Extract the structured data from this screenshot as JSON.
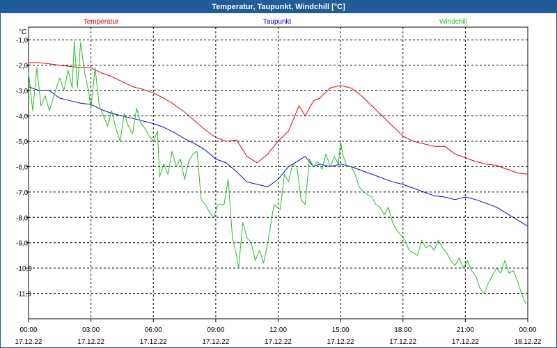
{
  "window": {
    "title": "Temperatur, Taupunkt, Windchill [°C]"
  },
  "colors": {
    "titlebar": "#1f5c99",
    "temperatur": "#e00000",
    "taupunkt": "#0000d0",
    "windchill": "#22c022"
  },
  "chart_data": {
    "type": "line",
    "title": "Temperatur, Taupunkt, Windchill [°C]",
    "ylabel": "°C",
    "xlabel": "",
    "ylim": [
      -12,
      -0.5
    ],
    "xlim": [
      0,
      24
    ],
    "grid": true,
    "legend_placement": "top",
    "yticks": [
      -1.0,
      -2.0,
      -3.0,
      -4.0,
      -5.0,
      -6.0,
      -7.0,
      -8.0,
      -9.0,
      -10.0,
      -11.0
    ],
    "ytick_labels": [
      "-1,0",
      "-2,0",
      "-3,0",
      "-4,0",
      "-5,0",
      "-6,0",
      "-7,0",
      "-8,0",
      "-9,0",
      "-10,0",
      "-11,0"
    ],
    "xticks": [
      {
        "x": 0,
        "time": "00:00",
        "date": "17.12.22"
      },
      {
        "x": 3,
        "time": "03:00",
        "date": "17.12.22"
      },
      {
        "x": 6,
        "time": "06:00",
        "date": "17.12.22"
      },
      {
        "x": 9,
        "time": "09:00",
        "date": "17.12.22"
      },
      {
        "x": 12,
        "time": "12:00",
        "date": "17.12.22"
      },
      {
        "x": 15,
        "time": "15:00",
        "date": "17.12.22"
      },
      {
        "x": 18,
        "time": "18:00",
        "date": "17.12.22"
      },
      {
        "x": 21,
        "time": "21:00",
        "date": "17.12.22"
      },
      {
        "x": 24,
        "time": "00:00",
        "date": "18.12.22"
      }
    ],
    "series": [
      {
        "name": "Temperatur",
        "color": "#e00000",
        "points": [
          [
            0,
            -1.9
          ],
          [
            0.5,
            -1.9
          ],
          [
            1,
            -1.95
          ],
          [
            1.5,
            -2.0
          ],
          [
            2,
            -2.05
          ],
          [
            2.5,
            -2.1
          ],
          [
            3,
            -2.1
          ],
          [
            3.5,
            -2.3
          ],
          [
            4,
            -2.45
          ],
          [
            4.5,
            -2.65
          ],
          [
            5,
            -2.85
          ],
          [
            5.5,
            -2.95
          ],
          [
            6,
            -3.1
          ],
          [
            6.5,
            -3.3
          ],
          [
            7,
            -3.55
          ],
          [
            7.5,
            -3.85
          ],
          [
            8,
            -4.2
          ],
          [
            8.5,
            -4.55
          ],
          [
            9,
            -4.85
          ],
          [
            9.5,
            -5.0
          ],
          [
            10,
            -4.95
          ],
          [
            10.5,
            -5.6
          ],
          [
            11,
            -5.85
          ],
          [
            11.5,
            -5.5
          ],
          [
            12,
            -5.0
          ],
          [
            12.5,
            -4.6
          ],
          [
            13,
            -3.6
          ],
          [
            13.3,
            -4.0
          ],
          [
            13.7,
            -3.4
          ],
          [
            14,
            -3.3
          ],
          [
            14.5,
            -2.9
          ],
          [
            15,
            -2.8
          ],
          [
            15.5,
            -2.9
          ],
          [
            16,
            -3.2
          ],
          [
            16.5,
            -3.6
          ],
          [
            17,
            -4.0
          ],
          [
            17.5,
            -4.4
          ],
          [
            18,
            -4.8
          ],
          [
            18.5,
            -5.0
          ],
          [
            19,
            -5.1
          ],
          [
            19.5,
            -5.2
          ],
          [
            20,
            -5.2
          ],
          [
            20.5,
            -5.5
          ],
          [
            21,
            -5.65
          ],
          [
            21.5,
            -5.8
          ],
          [
            22,
            -5.9
          ],
          [
            22.5,
            -5.95
          ],
          [
            23,
            -6.1
          ],
          [
            23.5,
            -6.25
          ],
          [
            24,
            -6.3
          ]
        ]
      },
      {
        "name": "Taupunkt",
        "color": "#0000d0",
        "points": [
          [
            0,
            -2.85
          ],
          [
            0.5,
            -3.0
          ],
          [
            1,
            -3.0
          ],
          [
            1.5,
            -3.3
          ],
          [
            2,
            -3.4
          ],
          [
            2.5,
            -3.5
          ],
          [
            3,
            -3.55
          ],
          [
            3.5,
            -3.75
          ],
          [
            4,
            -3.9
          ],
          [
            4.5,
            -4.0
          ],
          [
            5,
            -4.1
          ],
          [
            5.5,
            -4.2
          ],
          [
            6,
            -4.3
          ],
          [
            6.5,
            -4.45
          ],
          [
            7,
            -4.65
          ],
          [
            7.5,
            -4.9
          ],
          [
            8,
            -5.1
          ],
          [
            8.5,
            -5.35
          ],
          [
            9,
            -5.7
          ],
          [
            9.5,
            -5.85
          ],
          [
            10,
            -6.2
          ],
          [
            10.5,
            -6.6
          ],
          [
            11,
            -6.7
          ],
          [
            11.5,
            -6.8
          ],
          [
            12,
            -6.5
          ],
          [
            12.5,
            -6.0
          ],
          [
            13,
            -5.75
          ],
          [
            13.3,
            -5.6
          ],
          [
            13.7,
            -6.0
          ],
          [
            14,
            -5.9
          ],
          [
            14.5,
            -6.0
          ],
          [
            15,
            -5.9
          ],
          [
            15.5,
            -6.0
          ],
          [
            16,
            -6.15
          ],
          [
            16.5,
            -6.3
          ],
          [
            17,
            -6.45
          ],
          [
            17.5,
            -6.6
          ],
          [
            18,
            -6.7
          ],
          [
            18.5,
            -6.85
          ],
          [
            19,
            -7.0
          ],
          [
            19.5,
            -7.15
          ],
          [
            20,
            -7.2
          ],
          [
            20.5,
            -7.3
          ],
          [
            21,
            -7.2
          ],
          [
            21.5,
            -7.3
          ],
          [
            22,
            -7.45
          ],
          [
            22.5,
            -7.6
          ],
          [
            23,
            -7.85
          ],
          [
            23.5,
            -8.1
          ],
          [
            24,
            -8.35
          ]
        ]
      },
      {
        "name": "Windchill",
        "color": "#22c022",
        "points": [
          [
            0,
            -2.3
          ],
          [
            0.2,
            -3.8
          ],
          [
            0.4,
            -2.1
          ],
          [
            0.6,
            -3.6
          ],
          [
            0.8,
            -3.2
          ],
          [
            1,
            -3.8
          ],
          [
            1.3,
            -3.0
          ],
          [
            1.5,
            -2.5
          ],
          [
            1.7,
            -3.0
          ],
          [
            1.9,
            -2.2
          ],
          [
            2.1,
            -2.9
          ],
          [
            2.2,
            -1.05
          ],
          [
            2.35,
            -2.9
          ],
          [
            2.5,
            -1.1
          ],
          [
            2.7,
            -2.3
          ],
          [
            2.9,
            -3.1
          ],
          [
            3.0,
            -3.7
          ],
          [
            3.2,
            -2.1
          ],
          [
            3.4,
            -3.6
          ],
          [
            3.6,
            -4.0
          ],
          [
            3.8,
            -4.4
          ],
          [
            4.0,
            -3.8
          ],
          [
            4.2,
            -4.5
          ],
          [
            4.4,
            -5.0
          ],
          [
            4.6,
            -3.9
          ],
          [
            4.8,
            -4.4
          ],
          [
            5.0,
            -4.7
          ],
          [
            5.2,
            -3.7
          ],
          [
            5.4,
            -4.3
          ],
          [
            5.6,
            -4.5
          ],
          [
            5.8,
            -4.8
          ],
          [
            6.0,
            -5.0
          ],
          [
            6.2,
            -4.6
          ],
          [
            6.3,
            -6.4
          ],
          [
            6.5,
            -5.9
          ],
          [
            6.7,
            -6.3
          ],
          [
            6.9,
            -5.4
          ],
          [
            7.1,
            -6.0
          ],
          [
            7.3,
            -5.7
          ],
          [
            7.5,
            -6.5
          ],
          [
            7.7,
            -5.8
          ],
          [
            7.9,
            -5.5
          ],
          [
            8.1,
            -5.4
          ],
          [
            8.3,
            -7.3
          ],
          [
            8.5,
            -7.5
          ],
          [
            8.7,
            -7.8
          ],
          [
            8.9,
            -8.0
          ],
          [
            9.1,
            -7.5
          ],
          [
            9.4,
            -7.5
          ],
          [
            9.6,
            -6.5
          ],
          [
            9.8,
            -8.8
          ],
          [
            10.0,
            -9.5
          ],
          [
            10.1,
            -10.0
          ],
          [
            10.3,
            -8.2
          ],
          [
            10.5,
            -8.8
          ],
          [
            10.7,
            -9.0
          ],
          [
            10.9,
            -9.7
          ],
          [
            11.1,
            -9.3
          ],
          [
            11.3,
            -9.8
          ],
          [
            11.5,
            -9.0
          ],
          [
            11.8,
            -7.5
          ],
          [
            12.1,
            -7.7
          ],
          [
            12.3,
            -6.3
          ],
          [
            12.5,
            -6.6
          ],
          [
            12.7,
            -5.9
          ],
          [
            12.9,
            -6.0
          ],
          [
            13.1,
            -7.3
          ],
          [
            13.3,
            -7.5
          ],
          [
            13.5,
            -5.7
          ],
          [
            13.7,
            -6.0
          ],
          [
            13.9,
            -5.8
          ],
          [
            14.1,
            -6.1
          ],
          [
            14.3,
            -5.5
          ],
          [
            14.5,
            -6.0
          ],
          [
            14.7,
            -5.6
          ],
          [
            14.9,
            -5.9
          ],
          [
            15.0,
            -5.0
          ],
          [
            15.1,
            -5.5
          ],
          [
            15.3,
            -6.0
          ],
          [
            15.5,
            -6.0
          ],
          [
            15.7,
            -6.3
          ],
          [
            15.9,
            -6.8
          ],
          [
            16.1,
            -7.0
          ],
          [
            16.3,
            -7.1
          ],
          [
            16.5,
            -7.2
          ],
          [
            16.7,
            -7.5
          ],
          [
            16.9,
            -7.6
          ],
          [
            17.1,
            -7.9
          ],
          [
            17.3,
            -7.6
          ],
          [
            17.5,
            -8.2
          ],
          [
            17.7,
            -8.5
          ],
          [
            17.9,
            -8.7
          ],
          [
            18.1,
            -8.9
          ],
          [
            18.3,
            -9.3
          ],
          [
            18.5,
            -9.4
          ],
          [
            18.7,
            -9.5
          ],
          [
            18.9,
            -8.9
          ],
          [
            19.1,
            -9.2
          ],
          [
            19.3,
            -9.1
          ],
          [
            19.5,
            -9.3
          ],
          [
            19.7,
            -8.9
          ],
          [
            19.9,
            -9.2
          ],
          [
            20.1,
            -9.4
          ],
          [
            20.3,
            -9.7
          ],
          [
            20.5,
            -9.9
          ],
          [
            20.7,
            -9.6
          ],
          [
            20.9,
            -10.0
          ],
          [
            21.1,
            -9.7
          ],
          [
            21.3,
            -10.1
          ],
          [
            21.5,
            -10.3
          ],
          [
            21.7,
            -10.8
          ],
          [
            21.9,
            -11.0
          ],
          [
            22.1,
            -10.6
          ],
          [
            22.3,
            -10.3
          ],
          [
            22.5,
            -10.0
          ],
          [
            22.7,
            -10.2
          ],
          [
            22.9,
            -9.7
          ],
          [
            23.1,
            -10.2
          ],
          [
            23.3,
            -10.1
          ],
          [
            23.5,
            -10.5
          ],
          [
            23.7,
            -11.0
          ],
          [
            23.9,
            -11.4
          ]
        ]
      }
    ]
  }
}
